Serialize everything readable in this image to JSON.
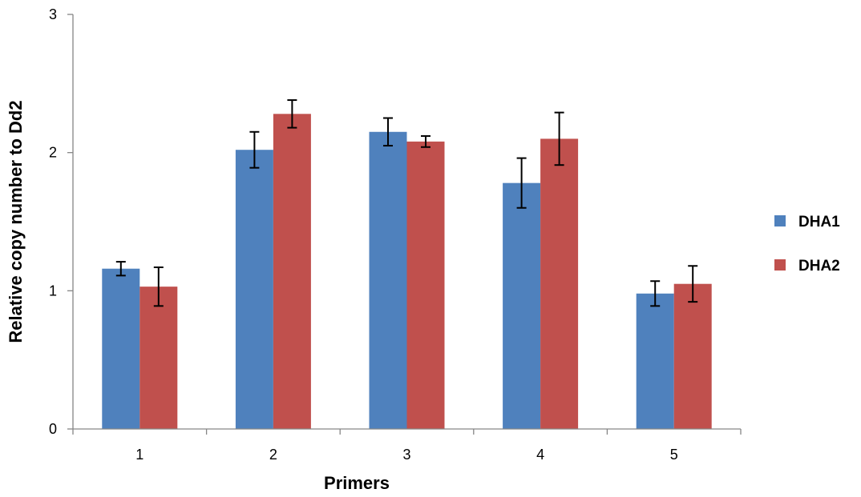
{
  "chart_data": {
    "type": "bar",
    "title": "",
    "xlabel": "Primers",
    "ylabel": "Relative copy number to Dd2",
    "categories": [
      "1",
      "2",
      "3",
      "4",
      "5"
    ],
    "ylim": [
      0,
      3
    ],
    "yticks": [
      "0",
      "1",
      "2",
      "3"
    ],
    "grid": false,
    "legend_position": "right",
    "series": [
      {
        "name": "DHA1",
        "color": "#4f81bd",
        "values": [
          1.16,
          2.02,
          2.15,
          1.78,
          0.98
        ],
        "error": [
          0.05,
          0.13,
          0.1,
          0.18,
          0.09
        ]
      },
      {
        "name": "DHA2",
        "color": "#c0504d",
        "values": [
          1.03,
          2.28,
          2.08,
          2.1,
          1.05
        ],
        "error": [
          0.14,
          0.1,
          0.04,
          0.19,
          0.13
        ]
      }
    ]
  }
}
